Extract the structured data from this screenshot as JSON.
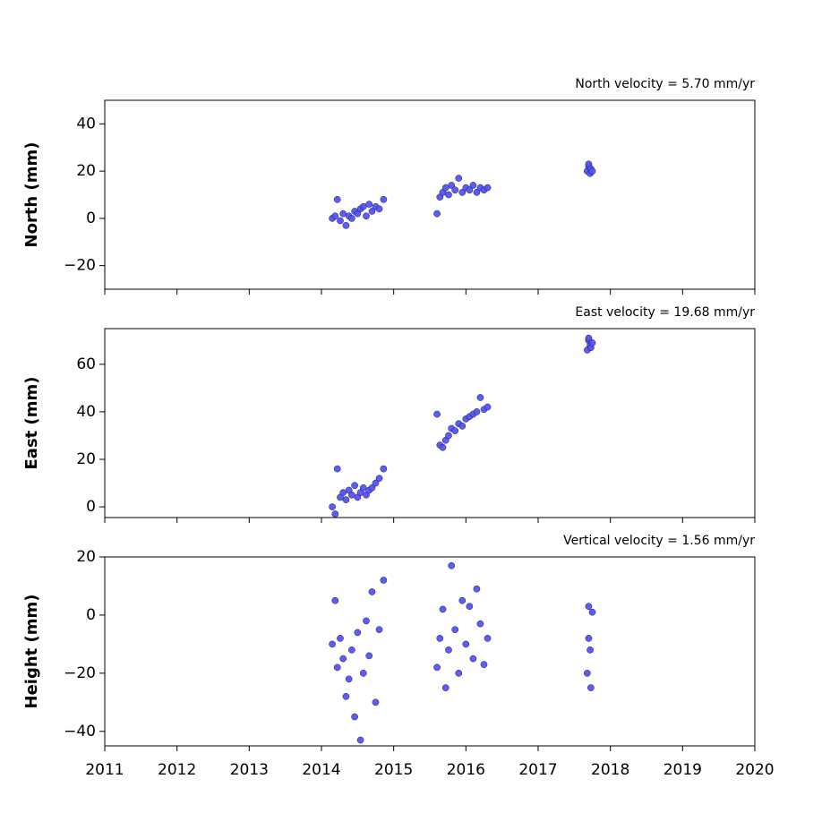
{
  "chart_data": [
    {
      "type": "scatter",
      "title": "North velocity = 5.70 mm/yr",
      "ylabel": "North (mm)",
      "color": "#5252ff",
      "x": [
        2014.15,
        2014.19,
        2014.22,
        2014.26,
        2014.3,
        2014.34,
        2014.38,
        2014.42,
        2014.46,
        2014.5,
        2014.54,
        2014.58,
        2014.62,
        2014.66,
        2014.7,
        2014.75,
        2014.8,
        2014.86,
        2015.6,
        2015.64,
        2015.68,
        2015.72,
        2015.76,
        2015.8,
        2015.85,
        2015.9,
        2015.95,
        2016.0,
        2016.05,
        2016.1,
        2016.15,
        2016.2,
        2016.25,
        2016.3,
        2017.68,
        2017.7,
        2017.72,
        2017.7,
        2017.73,
        2017.75
      ],
      "values": [
        0,
        1,
        8,
        -1,
        2,
        -3,
        1,
        0,
        3,
        2,
        4,
        5,
        1,
        6,
        3,
        5,
        4,
        8,
        2,
        9,
        11,
        13,
        10,
        14,
        12,
        17,
        11,
        13,
        12,
        14,
        11,
        13,
        12,
        13,
        20,
        22,
        19,
        23,
        21,
        20
      ],
      "xlim": [
        2011,
        2020
      ],
      "xticks": [
        2011,
        2012,
        2013,
        2014,
        2015,
        2016,
        2017,
        2018,
        2019,
        2020
      ],
      "show_xtick_labels": false,
      "ylim": [
        -30,
        50
      ],
      "yticks": [
        {
          "value": -20,
          "label": "−20"
        },
        0,
        20,
        40
      ]
    },
    {
      "type": "scatter",
      "title": "East velocity = 19.68 mm/yr",
      "ylabel": "East (mm)",
      "color": "#5252ff",
      "x": [
        2014.15,
        2014.19,
        2014.22,
        2014.26,
        2014.3,
        2014.34,
        2014.38,
        2014.42,
        2014.46,
        2014.5,
        2014.54,
        2014.58,
        2014.62,
        2014.66,
        2014.7,
        2014.75,
        2014.8,
        2014.86,
        2015.6,
        2015.64,
        2015.68,
        2015.72,
        2015.76,
        2015.8,
        2015.85,
        2015.9,
        2015.95,
        2016.0,
        2016.05,
        2016.1,
        2016.15,
        2016.2,
        2016.25,
        2016.3,
        2017.68,
        2017.7,
        2017.72,
        2017.7,
        2017.73,
        2017.75
      ],
      "values": [
        0,
        -3,
        16,
        4,
        6,
        3,
        7,
        5,
        9,
        4,
        6,
        8,
        5,
        7,
        8,
        10,
        12,
        16,
        39,
        26,
        25,
        28,
        30,
        33,
        32,
        35,
        34,
        37,
        38,
        39,
        40,
        46,
        41,
        42,
        66,
        70,
        68,
        71,
        67,
        69
      ],
      "xlim": [
        2011,
        2020
      ],
      "xticks": [
        2011,
        2012,
        2013,
        2014,
        2015,
        2016,
        2017,
        2018,
        2019,
        2020
      ],
      "show_xtick_labels": false,
      "ylim": [
        -4.5,
        75
      ],
      "yticks": [
        0,
        20,
        40,
        60
      ]
    },
    {
      "type": "scatter",
      "title": "Vertical velocity = 1.56 mm/yr",
      "ylabel": "Height (mm)",
      "color": "#5252ff",
      "x": [
        2014.15,
        2014.19,
        2014.22,
        2014.26,
        2014.3,
        2014.34,
        2014.38,
        2014.42,
        2014.46,
        2014.5,
        2014.54,
        2014.58,
        2014.62,
        2014.66,
        2014.7,
        2014.75,
        2014.8,
        2014.86,
        2015.6,
        2015.64,
        2015.68,
        2015.72,
        2015.76,
        2015.8,
        2015.85,
        2015.9,
        2015.95,
        2016.0,
        2016.05,
        2016.1,
        2016.15,
        2016.2,
        2016.25,
        2016.3,
        2017.68,
        2017.7,
        2017.72,
        2017.7,
        2017.73,
        2017.75
      ],
      "values": [
        -10,
        5,
        -18,
        -8,
        -15,
        -28,
        -22,
        -12,
        -35,
        -6,
        -43,
        -20,
        -2,
        -14,
        8,
        -30,
        -5,
        12,
        -18,
        -8,
        2,
        -25,
        -12,
        17,
        -5,
        -20,
        5,
        -10,
        3,
        -15,
        9,
        -3,
        -17,
        -8,
        -20,
        3,
        -12,
        -8,
        -25,
        1
      ],
      "xlim": [
        2011,
        2020
      ],
      "xticks": [
        2011,
        2012,
        2013,
        2014,
        2015,
        2016,
        2017,
        2018,
        2019,
        2020
      ],
      "show_xtick_labels": true,
      "ylim": [
        -45,
        20
      ],
      "yticks": [
        {
          "value": -40,
          "label": "−40"
        },
        {
          "value": -20,
          "label": "−20"
        },
        0,
        20
      ]
    }
  ]
}
